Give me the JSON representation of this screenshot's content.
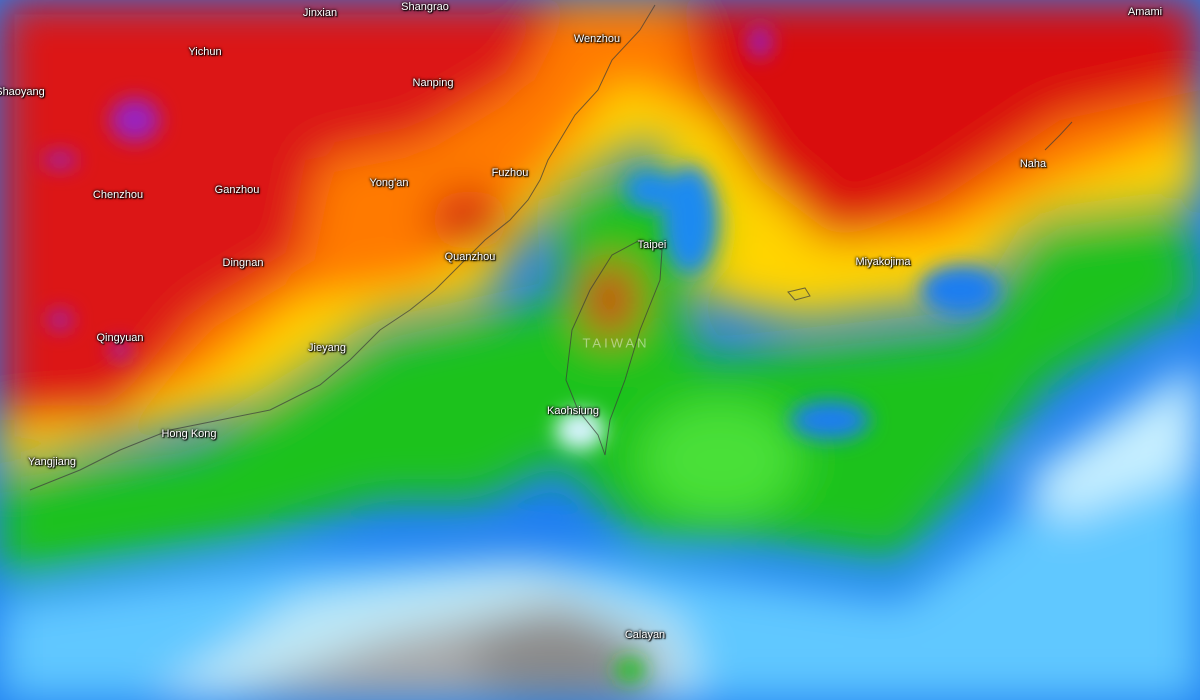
{
  "map": {
    "type": "precipitation radar / weather overlay",
    "region": "South-east China, Taiwan, Ryukyu Islands",
    "colors": {
      "extreme": "#8a1fb0",
      "heavy": "#d40f0f",
      "moderate_heavy": "#ff6a00",
      "moderate": "#ffd700",
      "light_moderate": "#22c41c",
      "light": "#1e7ef0",
      "very_light": "#7fe0ff",
      "trace": "#a8a8a8"
    },
    "labels": {
      "jinxian": "Jinxian",
      "shangrao": "Shangrao",
      "amami": "Amami",
      "yichun": "Yichun",
      "wenzhou": "Wenzhou",
      "shaoyang": "Shaoyang",
      "nanping": "Nanping",
      "naha": "Naha",
      "chenzhou": "Chenzhou",
      "ganzhou": "Ganzhou",
      "yongan": "Yong'an",
      "fuzhou": "Fuzhou",
      "taipei": "Taipei",
      "dingnan": "Dingnan",
      "quanzhou": "Quanzhou",
      "miyakojima": "Miyakojima",
      "qingyuan": "Qingyuan",
      "jieyang": "Jieyang",
      "taiwan": "TAIWAN",
      "kaohsiung": "Kaohsiung",
      "hongkong": "Hong Kong",
      "yangjiang": "Yangjiang",
      "calayan": "Calayan"
    }
  }
}
